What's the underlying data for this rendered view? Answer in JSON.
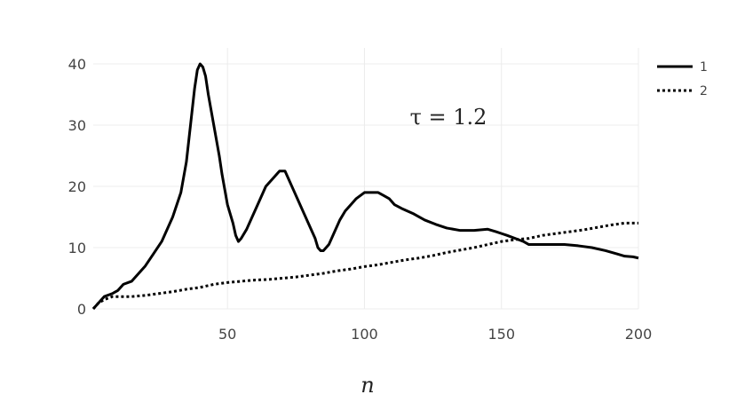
{
  "chart_data": {
    "type": "line",
    "xlabel": "n",
    "ylabel": "",
    "annotation": "τ = 1.2",
    "xlim": [
      1,
      200
    ],
    "ylim": [
      0,
      40
    ],
    "xticks": [
      50,
      100,
      150,
      200
    ],
    "yticks": [
      0,
      10,
      20,
      30,
      40
    ],
    "grid": true,
    "legend_position": "top-right",
    "series": [
      {
        "name": "1",
        "style": "solid",
        "color": "#000000",
        "points": [
          [
            1,
            0
          ],
          [
            3,
            1
          ],
          [
            5,
            2
          ],
          [
            8,
            2.5
          ],
          [
            10,
            3
          ],
          [
            12,
            4
          ],
          [
            15,
            4.5
          ],
          [
            18,
            6
          ],
          [
            20,
            7
          ],
          [
            23,
            9
          ],
          [
            26,
            11
          ],
          [
            30,
            15
          ],
          [
            33,
            19
          ],
          [
            35,
            24
          ],
          [
            36,
            28
          ],
          [
            37,
            32
          ],
          [
            38,
            36
          ],
          [
            39,
            39
          ],
          [
            40,
            40
          ],
          [
            41,
            39.5
          ],
          [
            42,
            38
          ],
          [
            43,
            35
          ],
          [
            45,
            30
          ],
          [
            47,
            25
          ],
          [
            48,
            22
          ],
          [
            50,
            17
          ],
          [
            52,
            14
          ],
          [
            53,
            12
          ],
          [
            54,
            11
          ],
          [
            55,
            11.5
          ],
          [
            57,
            13
          ],
          [
            59,
            15
          ],
          [
            61,
            17
          ],
          [
            64,
            20
          ],
          [
            66,
            21
          ],
          [
            69,
            22.5
          ],
          [
            71,
            22.5
          ],
          [
            72,
            21.5
          ],
          [
            74,
            19.5
          ],
          [
            76,
            17.5
          ],
          [
            78,
            15.5
          ],
          [
            80,
            13.5
          ],
          [
            82,
            11.5
          ],
          [
            83,
            10
          ],
          [
            84,
            9.5
          ],
          [
            85,
            9.5
          ],
          [
            87,
            10.5
          ],
          [
            89,
            12.5
          ],
          [
            91,
            14.5
          ],
          [
            93,
            16
          ],
          [
            95,
            17
          ],
          [
            97,
            18
          ],
          [
            100,
            19
          ],
          [
            103,
            19
          ],
          [
            105,
            19
          ],
          [
            107,
            18.5
          ],
          [
            109,
            18
          ],
          [
            111,
            17
          ],
          [
            114,
            16.3
          ],
          [
            118,
            15.5
          ],
          [
            122,
            14.5
          ],
          [
            126,
            13.8
          ],
          [
            130,
            13.2
          ],
          [
            135,
            12.8
          ],
          [
            140,
            12.8
          ],
          [
            145,
            13
          ],
          [
            148,
            12.6
          ],
          [
            150,
            12.3
          ],
          [
            152,
            12
          ],
          [
            155,
            11.5
          ],
          [
            158,
            11
          ],
          [
            160,
            10.5
          ],
          [
            163,
            10.5
          ],
          [
            168,
            10.5
          ],
          [
            173,
            10.5
          ],
          [
            178,
            10.3
          ],
          [
            183,
            10
          ],
          [
            188,
            9.5
          ],
          [
            192,
            9
          ],
          [
            195,
            8.6
          ],
          [
            198,
            8.5
          ],
          [
            200,
            8.3
          ]
        ]
      },
      {
        "name": "2",
        "style": "dotted",
        "color": "#000000",
        "points": [
          [
            1,
            0
          ],
          [
            3,
            1
          ],
          [
            5,
            1.5
          ],
          [
            8,
            2
          ],
          [
            10,
            2
          ],
          [
            15,
            2
          ],
          [
            20,
            2.2
          ],
          [
            25,
            2.5
          ],
          [
            30,
            2.8
          ],
          [
            35,
            3.2
          ],
          [
            40,
            3.5
          ],
          [
            45,
            4
          ],
          [
            50,
            4.3
          ],
          [
            55,
            4.5
          ],
          [
            60,
            4.7
          ],
          [
            65,
            4.8
          ],
          [
            70,
            5
          ],
          [
            75,
            5.2
          ],
          [
            80,
            5.5
          ],
          [
            85,
            5.8
          ],
          [
            90,
            6.2
          ],
          [
            95,
            6.5
          ],
          [
            100,
            6.9
          ],
          [
            105,
            7.2
          ],
          [
            110,
            7.6
          ],
          [
            115,
            8
          ],
          [
            120,
            8.3
          ],
          [
            125,
            8.7
          ],
          [
            130,
            9.2
          ],
          [
            135,
            9.6
          ],
          [
            140,
            10
          ],
          [
            145,
            10.5
          ],
          [
            150,
            11
          ],
          [
            155,
            11.3
          ],
          [
            160,
            11.5
          ],
          [
            165,
            12
          ],
          [
            170,
            12.3
          ],
          [
            175,
            12.6
          ],
          [
            180,
            12.9
          ],
          [
            185,
            13.3
          ],
          [
            190,
            13.7
          ],
          [
            195,
            14
          ],
          [
            200,
            14
          ]
        ]
      }
    ]
  }
}
